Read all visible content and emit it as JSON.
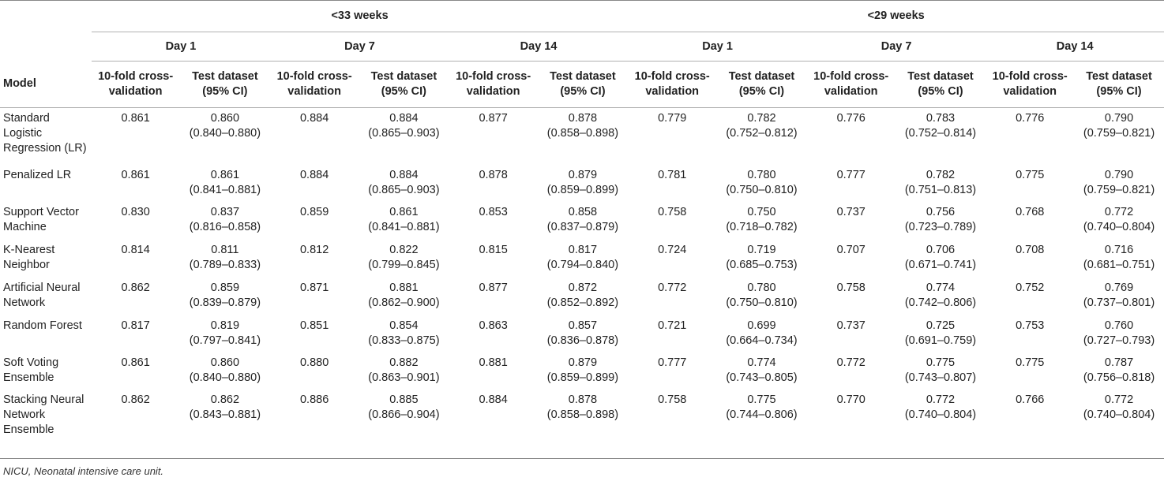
{
  "table": {
    "groups": [
      "<33 weeks",
      "<29 weeks"
    ],
    "days": [
      "Day 1",
      "Day 7",
      "Day 14"
    ],
    "model_header": "Model",
    "subheaders": {
      "cv_line1": "10-fold cross-",
      "cv_line2": "validation",
      "test_line1": "Test dataset",
      "test_line2": "(95% CI)"
    },
    "rows": [
      {
        "model": [
          "Standard",
          "Logistic",
          "Regression (LR)"
        ],
        "cells": [
          {
            "cv": "0.861",
            "test": "0.860",
            "ci": "(0.840–0.880)"
          },
          {
            "cv": "0.884",
            "test": "0.884",
            "ci": "(0.865–0.903)"
          },
          {
            "cv": "0.877",
            "test": "0.878",
            "ci": "(0.858–0.898)"
          },
          {
            "cv": "0.779",
            "test": "0.782",
            "ci": "(0.752–0.812)"
          },
          {
            "cv": "0.776",
            "test": "0.783",
            "ci": "(0.752–0.814)"
          },
          {
            "cv": "0.776",
            "test": "0.790",
            "ci": "(0.759–0.821)"
          }
        ]
      },
      {
        "model": [
          "Penalized LR"
        ],
        "cells": [
          {
            "cv": "0.861",
            "test": "0.861",
            "ci": "(0.841–0.881)"
          },
          {
            "cv": "0.884",
            "test": "0.884",
            "ci": "(0.865–0.903)"
          },
          {
            "cv": "0.878",
            "test": "0.879",
            "ci": "(0.859–0.899)"
          },
          {
            "cv": "0.781",
            "test": "0.780",
            "ci": "(0.750–0.810)"
          },
          {
            "cv": "0.777",
            "test": "0.782",
            "ci": "(0.751–0.813)"
          },
          {
            "cv": "0.775",
            "test": "0.790",
            "ci": "(0.759–0.821)"
          }
        ]
      },
      {
        "model": [
          "Support Vector",
          "Machine"
        ],
        "cells": [
          {
            "cv": "0.830",
            "test": "0.837",
            "ci": "(0.816–0.858)"
          },
          {
            "cv": "0.859",
            "test": "0.861",
            "ci": "(0.841–0.881)"
          },
          {
            "cv": "0.853",
            "test": "0.858",
            "ci": "(0.837–0.879)"
          },
          {
            "cv": "0.758",
            "test": "0.750",
            "ci": "(0.718–0.782)"
          },
          {
            "cv": "0.737",
            "test": "0.756",
            "ci": "(0.723–0.789)"
          },
          {
            "cv": "0.768",
            "test": "0.772",
            "ci": "(0.740–0.804)"
          }
        ]
      },
      {
        "model": [
          "K-Nearest",
          "Neighbor"
        ],
        "cells": [
          {
            "cv": "0.814",
            "test": "0.811",
            "ci": "(0.789–0.833)"
          },
          {
            "cv": "0.812",
            "test": "0.822",
            "ci": "(0.799–0.845)"
          },
          {
            "cv": "0.815",
            "test": "0.817",
            "ci": "(0.794–0.840)"
          },
          {
            "cv": "0.724",
            "test": "0.719",
            "ci": "(0.685–0.753)"
          },
          {
            "cv": "0.707",
            "test": "0.706",
            "ci": "(0.671–0.741)"
          },
          {
            "cv": "0.708",
            "test": "0.716",
            "ci": "(0.681–0.751)"
          }
        ]
      },
      {
        "model": [
          "Artificial Neural",
          "Network"
        ],
        "cells": [
          {
            "cv": "0.862",
            "test": "0.859",
            "ci": "(0.839–0.879)"
          },
          {
            "cv": "0.871",
            "test": "0.881",
            "ci": "(0.862–0.900)"
          },
          {
            "cv": "0.877",
            "test": "0.872",
            "ci": "(0.852–0.892)"
          },
          {
            "cv": "0.772",
            "test": "0.780",
            "ci": "(0.750–0.810)"
          },
          {
            "cv": "0.758",
            "test": "0.774",
            "ci": "(0.742–0.806)"
          },
          {
            "cv": "0.752",
            "test": "0.769",
            "ci": "(0.737–0.801)"
          }
        ]
      },
      {
        "model": [
          "Random Forest"
        ],
        "cells": [
          {
            "cv": "0.817",
            "test": "0.819",
            "ci": "(0.797–0.841)"
          },
          {
            "cv": "0.851",
            "test": "0.854",
            "ci": "(0.833–0.875)"
          },
          {
            "cv": "0.863",
            "test": "0.857",
            "ci": "(0.836–0.878)"
          },
          {
            "cv": "0.721",
            "test": "0.699",
            "ci": "(0.664–0.734)"
          },
          {
            "cv": "0.737",
            "test": "0.725",
            "ci": "(0.691–0.759)"
          },
          {
            "cv": "0.753",
            "test": "0.760",
            "ci": "(0.727–0.793)"
          }
        ]
      },
      {
        "model": [
          "Soft Voting",
          "Ensemble"
        ],
        "cells": [
          {
            "cv": "0.861",
            "test": "0.860",
            "ci": "(0.840–0.880)"
          },
          {
            "cv": "0.880",
            "test": "0.882",
            "ci": "(0.863–0.901)"
          },
          {
            "cv": "0.881",
            "test": "0.879",
            "ci": "(0.859–0.899)"
          },
          {
            "cv": "0.777",
            "test": "0.774",
            "ci": "(0.743–0.805)"
          },
          {
            "cv": "0.772",
            "test": "0.775",
            "ci": "(0.743–0.807)"
          },
          {
            "cv": "0.775",
            "test": "0.787",
            "ci": "(0.756–0.818)"
          }
        ]
      },
      {
        "model": [
          "Stacking Neural",
          "Network",
          "Ensemble"
        ],
        "cells": [
          {
            "cv": "0.862",
            "test": "0.862",
            "ci": "(0.843–0.881)"
          },
          {
            "cv": "0.886",
            "test": "0.885",
            "ci": "(0.866–0.904)"
          },
          {
            "cv": "0.884",
            "test": "0.878",
            "ci": "(0.858–0.898)"
          },
          {
            "cv": "0.758",
            "test": "0.775",
            "ci": "(0.744–0.806)"
          },
          {
            "cv": "0.770",
            "test": "0.772",
            "ci": "(0.740–0.804)"
          },
          {
            "cv": "0.766",
            "test": "0.772",
            "ci": "(0.740–0.804)"
          }
        ]
      }
    ],
    "footnote": "NICU, Neonatal intensive care unit."
  }
}
